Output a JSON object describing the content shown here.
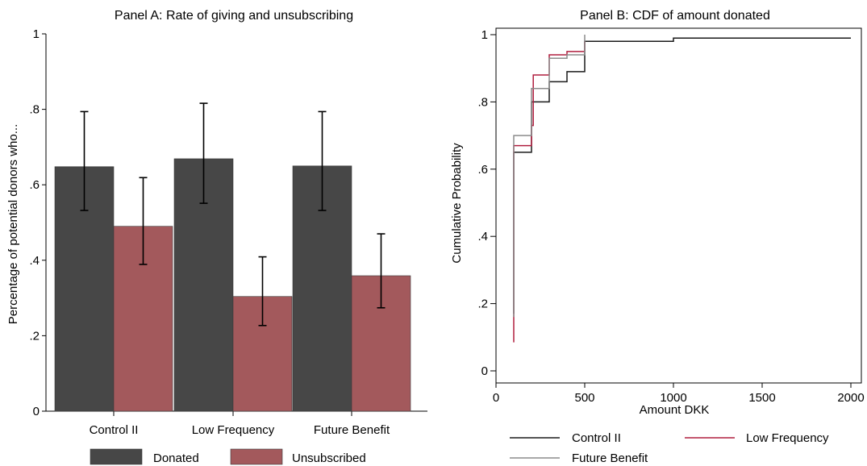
{
  "chart_data": [
    {
      "type": "bar",
      "title": "Panel A: Rate of giving and unsubscribing",
      "xlabel": "",
      "ylabel": "Percentage of potential donors who...",
      "ylim": [
        0,
        1
      ],
      "yticks": [
        "0",
        ".2",
        ".4",
        ".6",
        ".8",
        "1"
      ],
      "categories": [
        "Control II",
        "Low Frequency",
        "Future Benefit"
      ],
      "series": [
        {
          "name": "Donated",
          "color": "#474747",
          "values": [
            0.648,
            0.669,
            0.65
          ],
          "ci_low": [
            0.532,
            0.551,
            0.532
          ],
          "ci_high": [
            0.794,
            0.816,
            0.794
          ]
        },
        {
          "name": "Unsubscribed",
          "color": "#a3595c",
          "values": [
            0.49,
            0.304,
            0.359
          ],
          "ci_low": [
            0.389,
            0.227,
            0.274
          ],
          "ci_high": [
            0.619,
            0.409,
            0.47
          ]
        }
      ],
      "legend": "bottom",
      "grid": false
    },
    {
      "type": "line",
      "title": "Panel B: CDF of amount donated",
      "xlabel": "Amount DKK",
      "ylabel": "Cumulative Probability",
      "xlim": [
        0,
        2000
      ],
      "ylim": [
        0,
        1
      ],
      "xticks": [
        "0",
        "500",
        "1000",
        "1500",
        "2000"
      ],
      "yticks": [
        "0",
        ".2",
        ".4",
        ".6",
        ".8",
        "1"
      ],
      "series": [
        {
          "name": "Control II",
          "color": "#1a1a1a",
          "x": [
            100,
            100,
            200,
            200,
            300,
            300,
            400,
            400,
            500,
            500,
            1000,
            1000,
            2000
          ],
          "y": [
            0.17,
            0.65,
            0.65,
            0.8,
            0.8,
            0.86,
            0.86,
            0.89,
            0.89,
            0.98,
            0.98,
            0.99,
            0.99
          ]
        },
        {
          "name": "Low Frequency",
          "color": "#b01e3f",
          "x": [
            100,
            100,
            200,
            200,
            210,
            210,
            300,
            300,
            400,
            400,
            500,
            500
          ],
          "y": [
            0.085,
            0.67,
            0.67,
            0.73,
            0.73,
            0.88,
            0.88,
            0.94,
            0.94,
            0.95,
            0.95,
            0.98
          ]
        },
        {
          "name": "Future Benefit",
          "color": "#8c8c8c",
          "x": [
            100,
            100,
            200,
            200,
            300,
            300,
            400,
            400,
            500,
            500
          ],
          "y": [
            0.16,
            0.7,
            0.7,
            0.84,
            0.84,
            0.93,
            0.93,
            0.94,
            0.94,
            1.0
          ]
        }
      ],
      "legend": "bottom",
      "grid": false
    }
  ]
}
